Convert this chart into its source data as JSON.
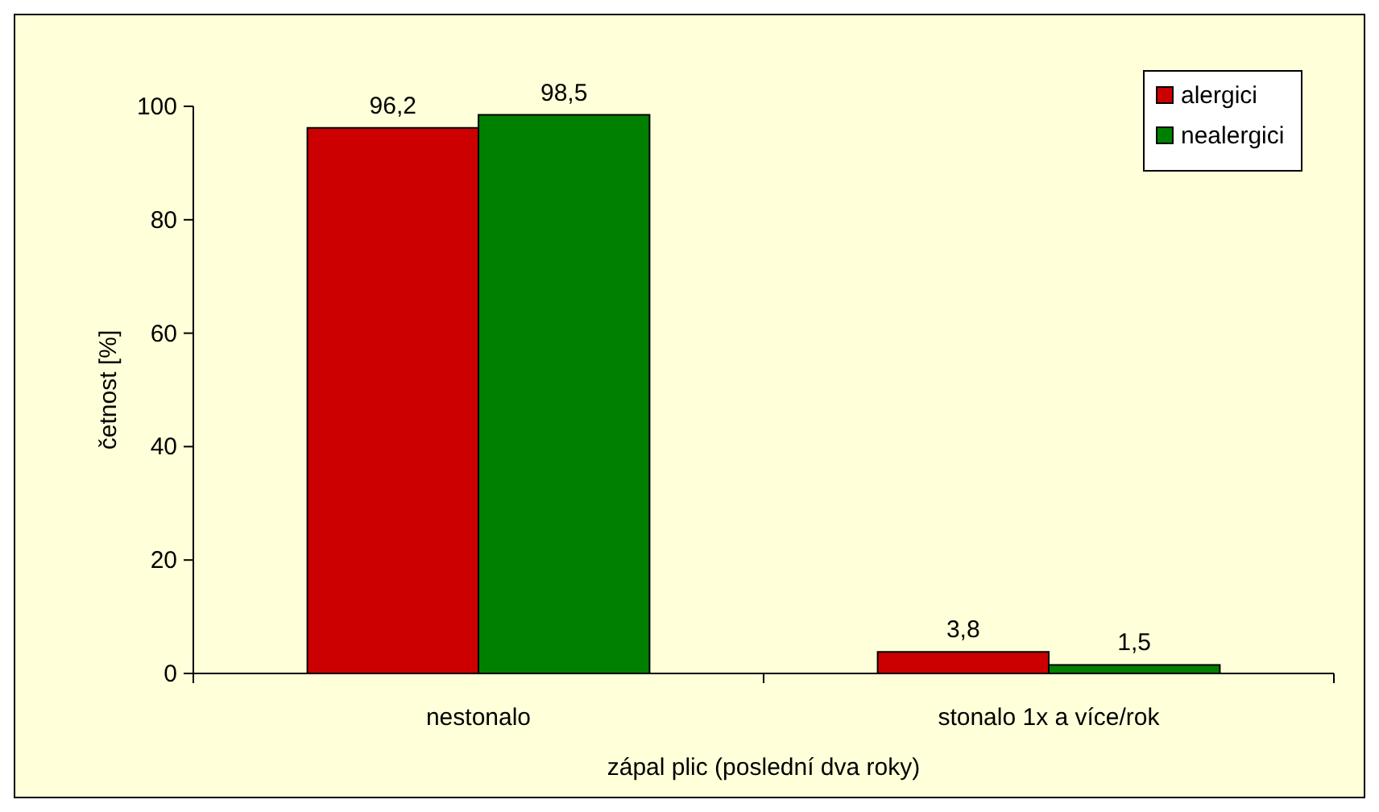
{
  "chart_data": {
    "type": "bar",
    "xlabel": "zápal plic (poslední dva roky)",
    "ylabel": "četnost [%]",
    "categories": [
      "nestonalo",
      "stonalo 1x a více/rok"
    ],
    "series": [
      {
        "name": "alergici",
        "color": "#cc0000",
        "values": [
          96.2,
          3.8
        ],
        "value_labels": [
          "96,2",
          "3,8"
        ]
      },
      {
        "name": "nealergici",
        "color": "#008000",
        "values": [
          98.5,
          1.5
        ],
        "value_labels": [
          "98,5",
          "1,5"
        ]
      }
    ],
    "ylim": [
      0,
      100
    ],
    "yticks": [
      0,
      20,
      40,
      60,
      80,
      100
    ],
    "grid": false,
    "legend": "top right"
  }
}
